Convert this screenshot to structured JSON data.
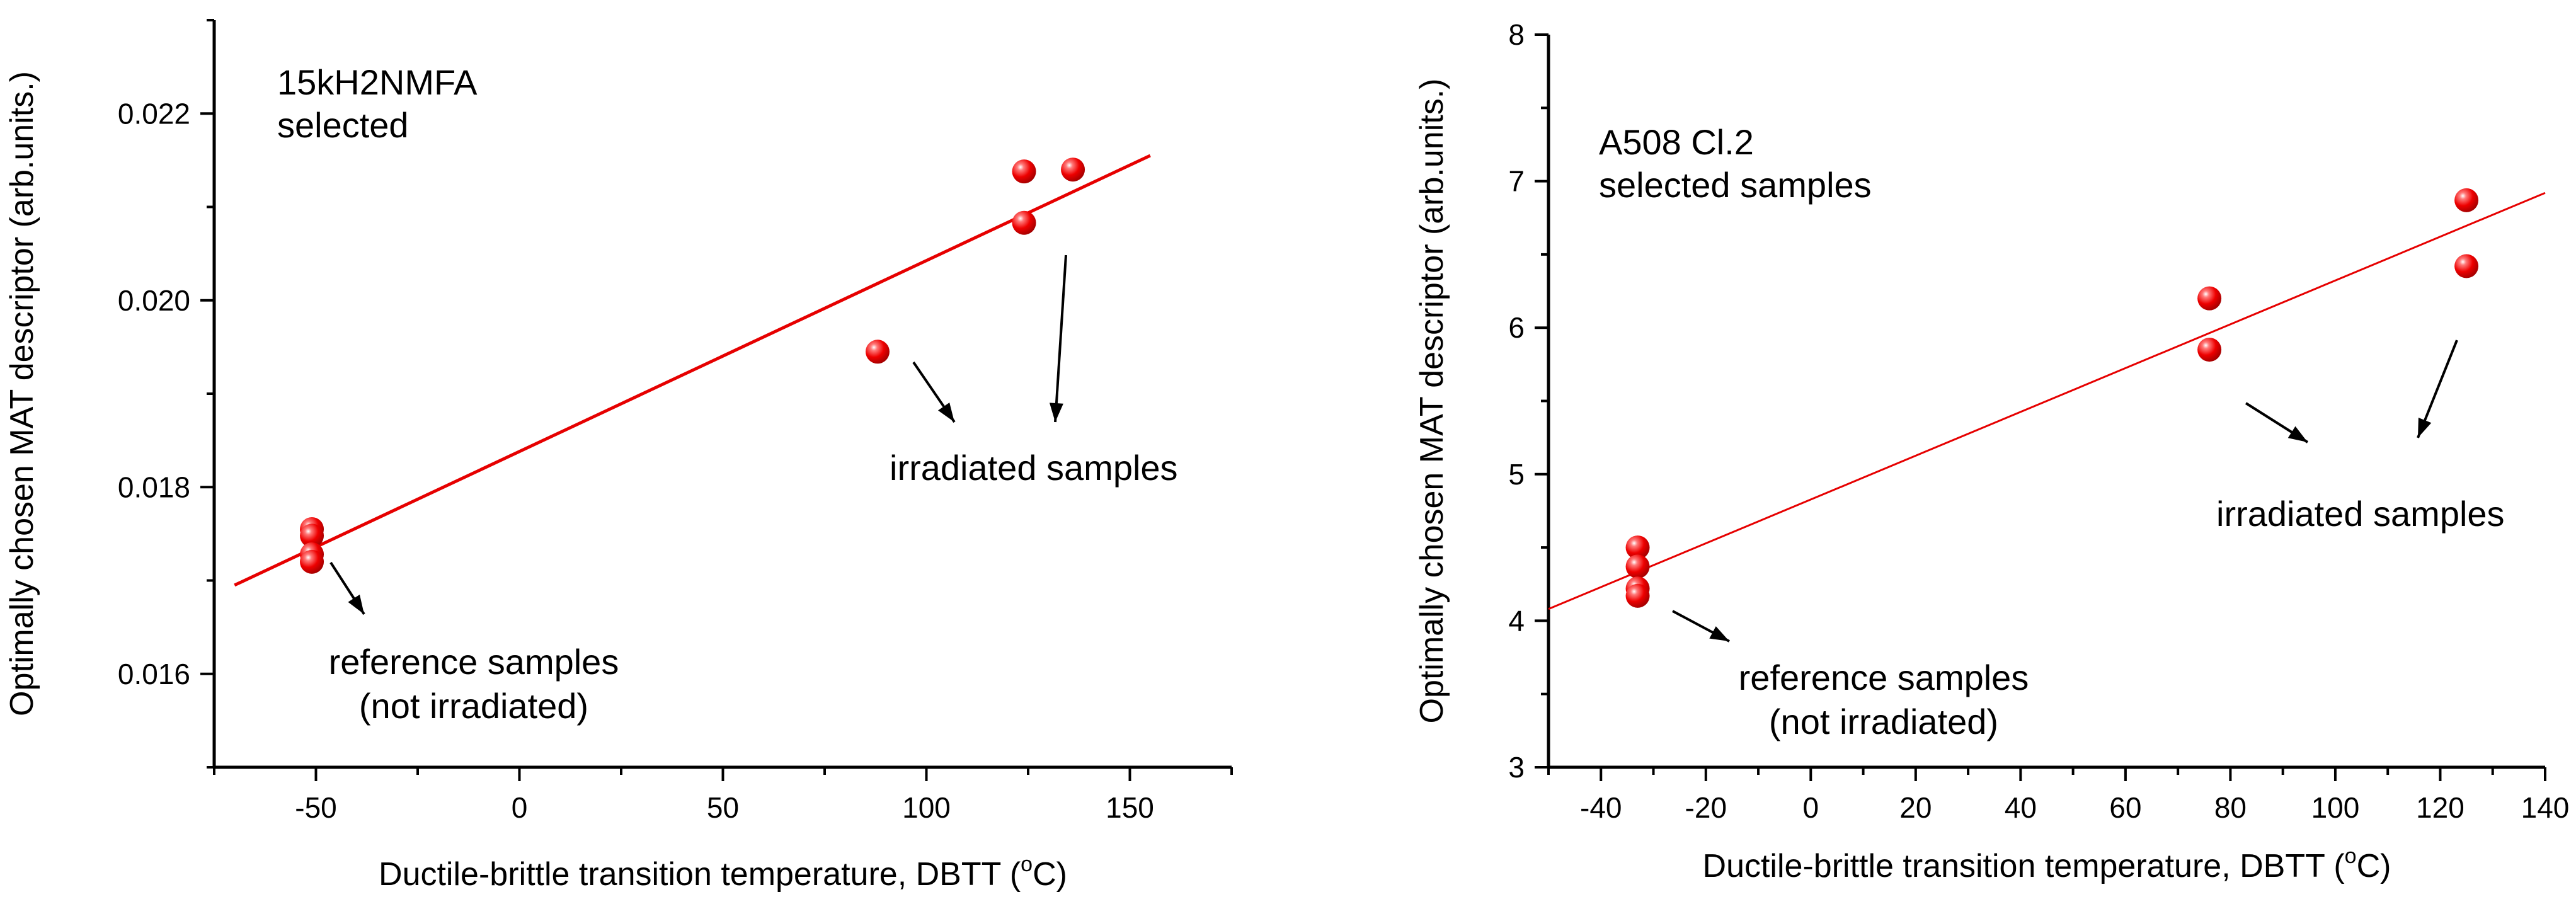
{
  "colors": {
    "fit_line": "#e60000",
    "point": "#e60000",
    "axis": "#000000"
  },
  "chart_data": [
    {
      "type": "scatter",
      "xlabel_prefix": "Ductile-brittle transition temperature, DBTT (",
      "xlabel_degree": "o",
      "xlabel_suffix": "C)",
      "ylabel": "Optimally chosen  MAT descriptor (arb.units.)",
      "xlim": [
        -75,
        175
      ],
      "ylim": [
        0.015,
        0.023
      ],
      "xticks": [
        -50,
        0,
        50,
        100,
        150
      ],
      "xtick_labels": [
        "-50",
        "0",
        "50",
        "100",
        "150"
      ],
      "yticks": [
        0.016,
        0.018,
        0.02,
        0.022
      ],
      "ytick_labels": [
        "0.016",
        "0.018",
        "0.020",
        "0.022"
      ],
      "grid": false,
      "series": [
        {
          "name": "reference samples",
          "x": [
            -51,
            -51,
            -51,
            -51
          ],
          "y": [
            0.01755,
            0.01748,
            0.01728,
            0.0172
          ]
        },
        {
          "name": "irradiated samples",
          "x": [
            88,
            124,
            124,
            136
          ],
          "y": [
            0.01945,
            0.02138,
            0.02083,
            0.0214
          ]
        }
      ],
      "fit_line": {
        "x": [
          -70,
          155
        ],
        "y": [
          0.01695,
          0.02155
        ]
      },
      "annotations": [
        {
          "id": "material",
          "lines": [
            "15kH2NMFA",
            "selected"
          ]
        },
        {
          "id": "irradiated",
          "lines": [
            "irradiated samples"
          ]
        },
        {
          "id": "reference",
          "lines": [
            "reference samples",
            "(not irradiated)"
          ]
        }
      ]
    },
    {
      "type": "scatter",
      "xlabel_prefix": "Ductile-brittle transition temperature, DBTT (",
      "xlabel_degree": "o",
      "xlabel_suffix": "C)",
      "ylabel": "Optimally chosen  MAT descriptor (arb.units.)",
      "xlim": [
        -50,
        140
      ],
      "ylim": [
        3,
        8
      ],
      "xticks": [
        -40,
        -20,
        0,
        20,
        40,
        60,
        80,
        100,
        120,
        140
      ],
      "xtick_labels": [
        "-40",
        "-20",
        "0",
        "20",
        "40",
        "60",
        "80",
        "100",
        "120",
        "140"
      ],
      "yticks": [
        3,
        4,
        5,
        6,
        7,
        8
      ],
      "ytick_labels": [
        "3",
        "4",
        "5",
        "6",
        "7",
        "8"
      ],
      "grid": false,
      "series": [
        {
          "name": "reference samples",
          "x": [
            -33,
            -33,
            -33,
            -33
          ],
          "y": [
            4.5,
            4.37,
            4.22,
            4.17
          ]
        },
        {
          "name": "irradiated samples",
          "x": [
            76,
            76,
            125,
            125
          ],
          "y": [
            6.2,
            5.85,
            6.87,
            6.42
          ]
        }
      ],
      "fit_line": {
        "x": [
          -50,
          140
        ],
        "y": [
          4.08,
          6.92
        ]
      },
      "annotations": [
        {
          "id": "material",
          "lines": [
            "A508 Cl.2",
            "selected samples"
          ]
        },
        {
          "id": "irradiated",
          "lines": [
            "irradiated samples"
          ]
        },
        {
          "id": "reference",
          "lines": [
            "reference samples",
            "(not irradiated)"
          ]
        }
      ]
    }
  ]
}
